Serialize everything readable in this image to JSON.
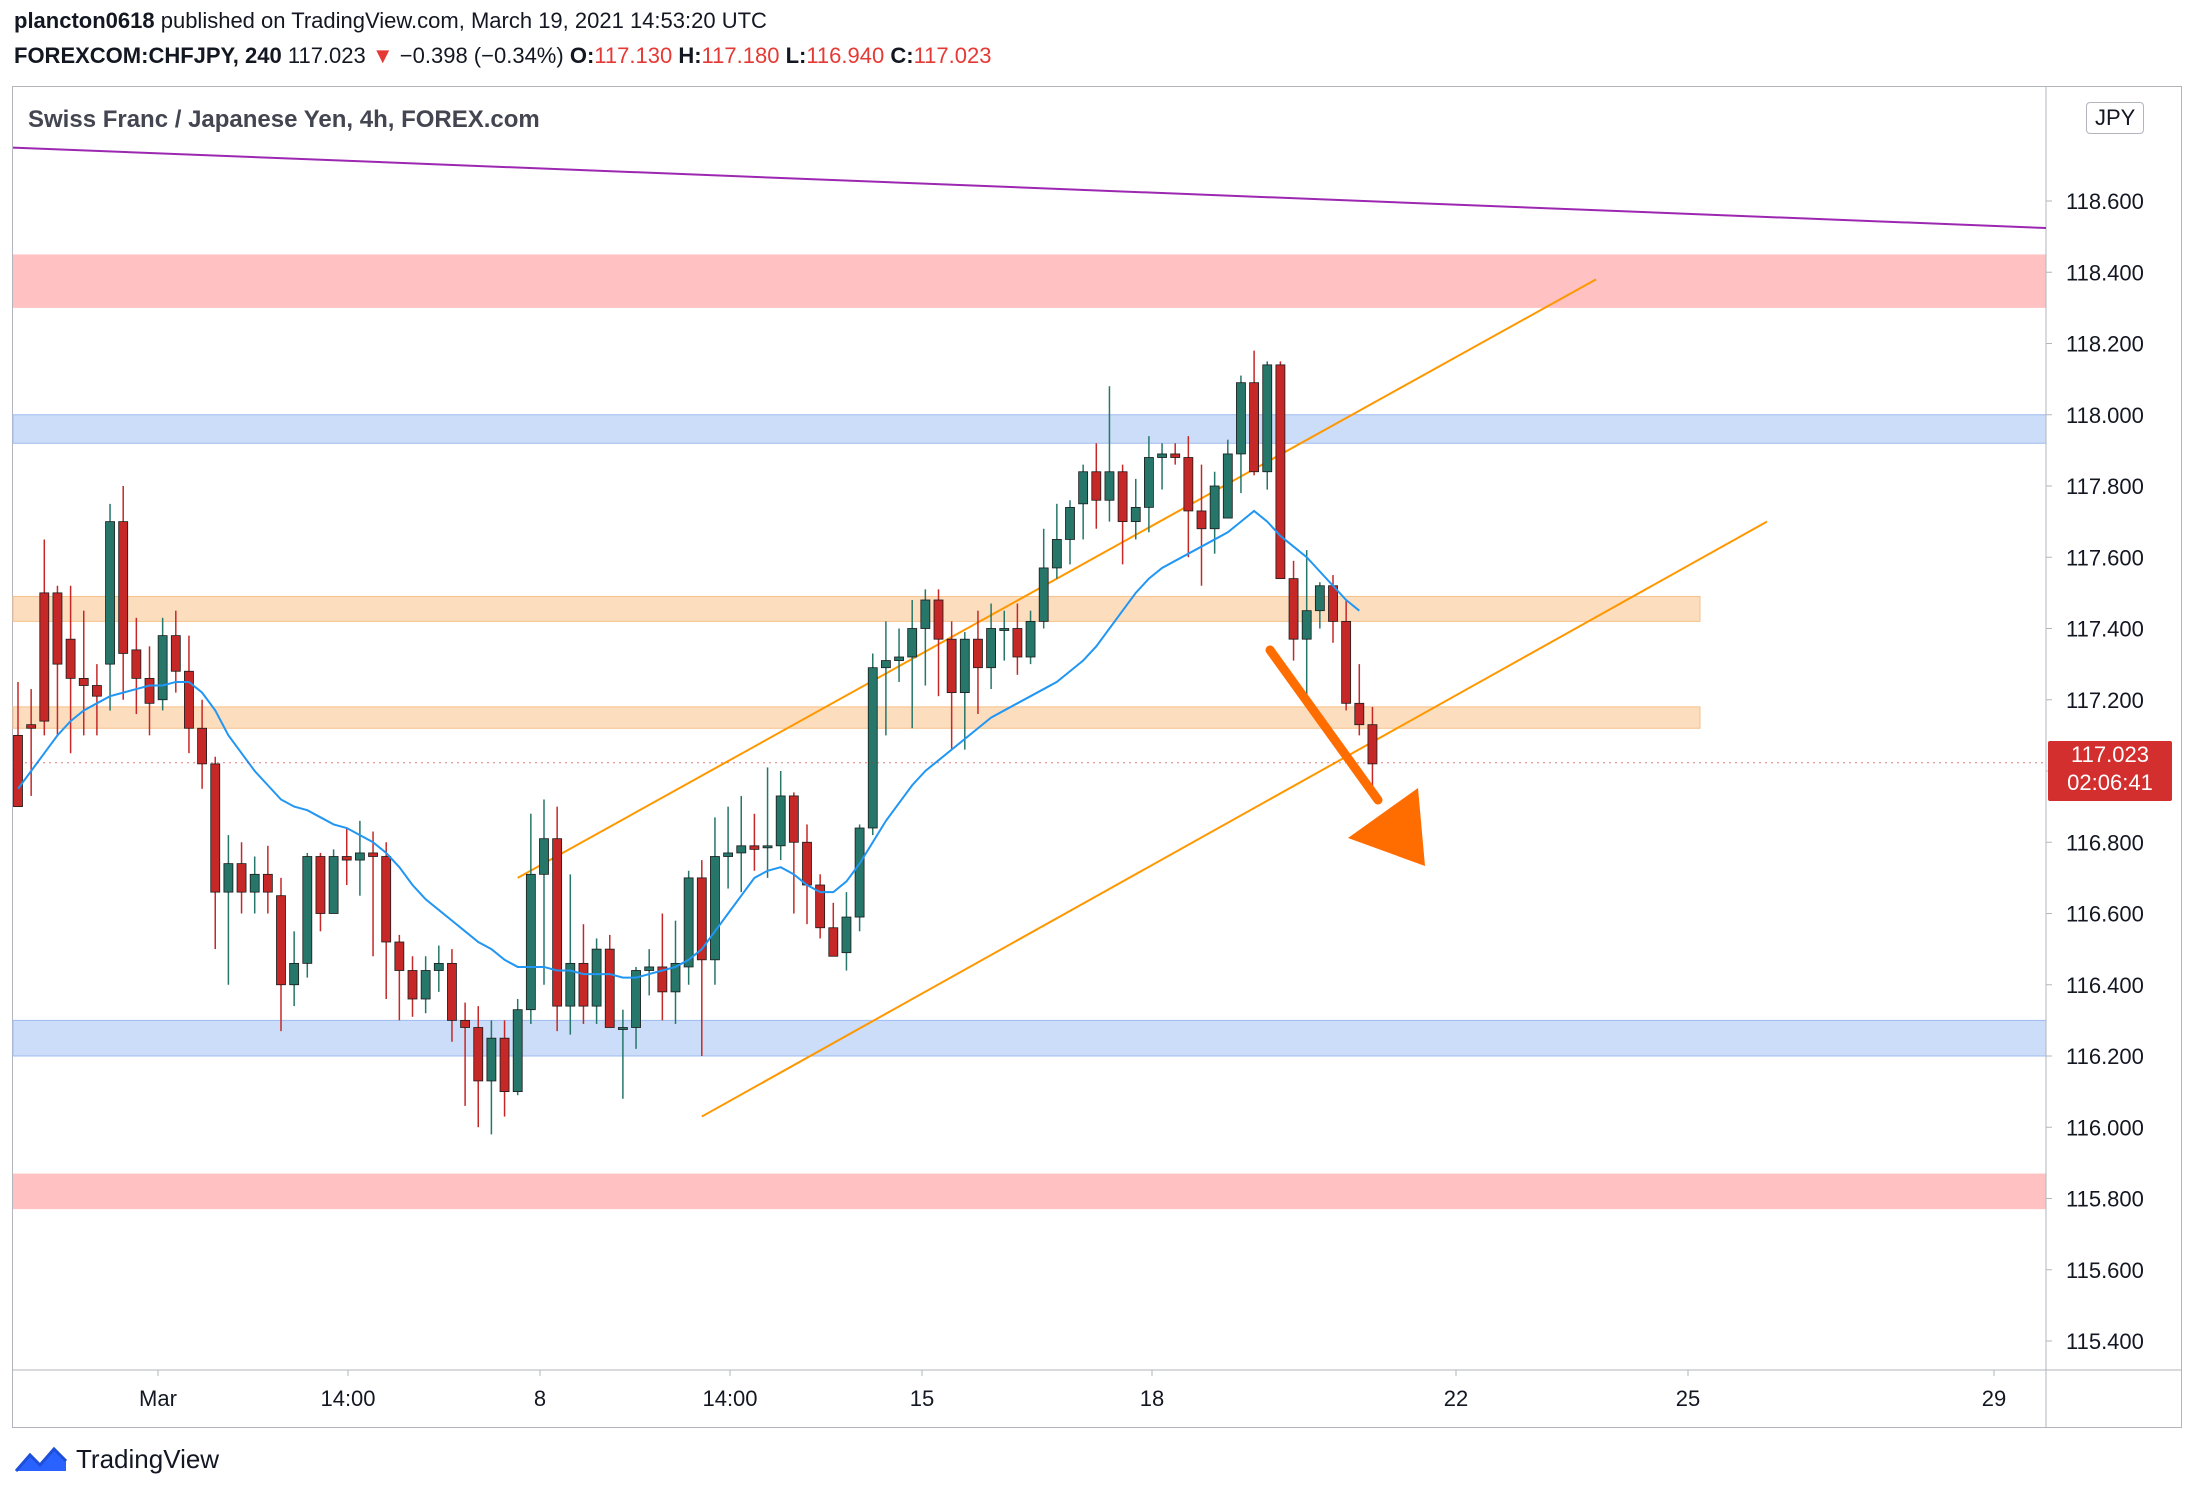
{
  "header": {
    "author": "plancton0618",
    "published": " published on TradingView.com, March 19, 2021 14:53:20 UTC",
    "symbol": "FOREXCOM:CHFJPY, 240",
    "price": "117.023",
    "change_arrow": "▼",
    "change": "−0.398 (−0.34%)",
    "o_label": "O:",
    "o_value": "117.130",
    "h_label": "H:",
    "h_value": "117.180",
    "l_label": "L:",
    "l_value": "116.940",
    "c_label": "C:",
    "c_value": "117.023"
  },
  "chart_title": "Swiss Franc / Japanese Yen, 4h, FOREX.com",
  "currency": "JPY",
  "last_price": {
    "value": "117.023",
    "countdown": "02:06:41",
    "color": "#d32f2f"
  },
  "footer": {
    "brand": "TradingView"
  },
  "colors": {
    "up": "#26766a",
    "down": "#c62828",
    "ma": "#2196f3",
    "channel": "#ff9800",
    "trendline": "#9c27b0",
    "red_zone": "#ffbaba",
    "blue_zone": "#c5d9f7",
    "orange_zone": "#fbd7b3",
    "arrow": "#ff6d00"
  },
  "chart_data": {
    "type": "candlestick",
    "symbol": "CHFJPY",
    "interval": "4h",
    "ylim": [
      115.3,
      119.0
    ],
    "yticks": [
      "118.600",
      "118.400",
      "118.200",
      "118.000",
      "117.800",
      "117.600",
      "117.400",
      "117.200",
      "117.000",
      "116.800",
      "116.600",
      "116.400",
      "116.200",
      "116.000",
      "115.800",
      "115.600",
      "115.400"
    ],
    "xticks": [
      "Mar",
      "14:00",
      "8",
      "14:00",
      "15",
      "18",
      "22",
      "25",
      "29"
    ],
    "zones": [
      {
        "type": "resistance",
        "color": "red",
        "from": 118.3,
        "to": 118.45
      },
      {
        "type": "resistance",
        "color": "blue",
        "from": 117.92,
        "to": 118.0
      },
      {
        "type": "level",
        "color": "orange",
        "from": 117.42,
        "to": 117.49
      },
      {
        "type": "level",
        "color": "orange",
        "from": 117.12,
        "to": 117.18
      },
      {
        "type": "support",
        "color": "blue",
        "from": 116.2,
        "to": 116.3
      },
      {
        "type": "support",
        "color": "red",
        "from": 115.77,
        "to": 115.87
      }
    ],
    "candles": [
      [
        117.1,
        116.9,
        117.25,
        116.9
      ],
      [
        117.13,
        117.12,
        117.23,
        116.93
      ],
      [
        117.5,
        117.14,
        117.65,
        117.1
      ],
      [
        117.5,
        117.3,
        117.52,
        117.1
      ],
      [
        117.37,
        117.26,
        117.52,
        117.05
      ],
      [
        117.26,
        117.24,
        117.45,
        117.1
      ],
      [
        117.24,
        117.21,
        117.3,
        117.1
      ],
      [
        117.3,
        117.7,
        117.75,
        117.17
      ],
      [
        117.7,
        117.33,
        117.8,
        117.2
      ],
      [
        117.34,
        117.26,
        117.43,
        117.16
      ],
      [
        117.26,
        117.19,
        117.35,
        117.1
      ],
      [
        117.2,
        117.38,
        117.43,
        117.17
      ],
      [
        117.38,
        117.28,
        117.45,
        117.22
      ],
      [
        117.28,
        117.12,
        117.38,
        117.05
      ],
      [
        117.12,
        117.02,
        117.2,
        116.95
      ],
      [
        117.02,
        116.66,
        117.04,
        116.5
      ],
      [
        116.66,
        116.74,
        116.82,
        116.4
      ],
      [
        116.74,
        116.66,
        116.8,
        116.6
      ],
      [
        116.66,
        116.71,
        116.76,
        116.6
      ],
      [
        116.71,
        116.66,
        116.79,
        116.6
      ],
      [
        116.65,
        116.4,
        116.7,
        116.27
      ],
      [
        116.4,
        116.46,
        116.55,
        116.34
      ],
      [
        116.46,
        116.76,
        116.77,
        116.42
      ],
      [
        116.76,
        116.6,
        116.77,
        116.55
      ],
      [
        116.6,
        116.76,
        116.78,
        116.6
      ],
      [
        116.76,
        116.75,
        116.84,
        116.68
      ],
      [
        116.75,
        116.77,
        116.86,
        116.65
      ],
      [
        116.77,
        116.76,
        116.83,
        116.48
      ],
      [
        116.76,
        116.52,
        116.8,
        116.36
      ],
      [
        116.52,
        116.44,
        116.54,
        116.3
      ],
      [
        116.44,
        116.36,
        116.48,
        116.31
      ],
      [
        116.36,
        116.44,
        116.48,
        116.32
      ],
      [
        116.44,
        116.46,
        116.51,
        116.38
      ],
      [
        116.46,
        116.3,
        116.5,
        116.24
      ],
      [
        116.3,
        116.28,
        116.35,
        116.06
      ],
      [
        116.28,
        116.13,
        116.34,
        116.0
      ],
      [
        116.13,
        116.25,
        116.3,
        115.98
      ],
      [
        116.25,
        116.1,
        116.3,
        116.03
      ],
      [
        116.1,
        116.33,
        116.36,
        116.09
      ],
      [
        116.33,
        116.71,
        116.88,
        116.29
      ],
      [
        116.71,
        116.81,
        116.92,
        116.4
      ],
      [
        116.81,
        116.34,
        116.9,
        116.27
      ],
      [
        116.34,
        116.46,
        116.71,
        116.26
      ],
      [
        116.46,
        116.34,
        116.57,
        116.29
      ],
      [
        116.34,
        116.5,
        116.53,
        116.29
      ],
      [
        116.5,
        116.28,
        116.54,
        116.28
      ],
      [
        116.28,
        116.28,
        116.33,
        116.08
      ],
      [
        116.28,
        116.44,
        116.45,
        116.22
      ],
      [
        116.44,
        116.45,
        116.5,
        116.37
      ],
      [
        116.45,
        116.38,
        116.6,
        116.3
      ],
      [
        116.38,
        116.46,
        116.58,
        116.29
      ],
      [
        116.45,
        116.7,
        116.72,
        116.4
      ],
      [
        116.7,
        116.47,
        116.75,
        116.2
      ],
      [
        116.47,
        116.76,
        116.87,
        116.4
      ],
      [
        116.76,
        116.77,
        116.9,
        116.67
      ],
      [
        116.77,
        116.79,
        116.93,
        116.66
      ],
      [
        116.79,
        116.78,
        116.88,
        116.72
      ],
      [
        116.79,
        116.79,
        117.01,
        116.7
      ],
      [
        116.79,
        116.93,
        117.0,
        116.75
      ],
      [
        116.93,
        116.8,
        116.94,
        116.6
      ],
      [
        116.8,
        116.68,
        116.85,
        116.57
      ],
      [
        116.68,
        116.56,
        116.71,
        116.53
      ],
      [
        116.56,
        116.48,
        116.63,
        116.5
      ],
      [
        116.49,
        116.59,
        116.66,
        116.44
      ],
      [
        116.59,
        116.84,
        116.85,
        116.55
      ],
      [
        116.84,
        117.29,
        117.33,
        116.82
      ],
      [
        117.29,
        117.31,
        117.42,
        117.1
      ],
      [
        117.31,
        117.32,
        117.4,
        117.25
      ],
      [
        117.32,
        117.4,
        117.48,
        117.12
      ],
      [
        117.4,
        117.48,
        117.51,
        117.24
      ],
      [
        117.48,
        117.37,
        117.51,
        117.21
      ],
      [
        117.37,
        117.22,
        117.42,
        117.06
      ],
      [
        117.22,
        117.37,
        117.39,
        117.06
      ],
      [
        117.37,
        117.29,
        117.45,
        117.16
      ],
      [
        117.29,
        117.4,
        117.47,
        117.23
      ],
      [
        117.4,
        117.4,
        117.45,
        117.31
      ],
      [
        117.4,
        117.32,
        117.47,
        117.27
      ],
      [
        117.32,
        117.42,
        117.45,
        117.3
      ],
      [
        117.42,
        117.57,
        117.68,
        117.4
      ],
      [
        117.57,
        117.65,
        117.75,
        117.54
      ],
      [
        117.65,
        117.74,
        117.76,
        117.58
      ],
      [
        117.75,
        117.84,
        117.86,
        117.65
      ],
      [
        117.84,
        117.76,
        117.92,
        117.68
      ],
      [
        117.76,
        117.84,
        118.08,
        117.7
      ],
      [
        117.84,
        117.7,
        117.86,
        117.58
      ],
      [
        117.7,
        117.74,
        117.82,
        117.65
      ],
      [
        117.74,
        117.88,
        117.94,
        117.67
      ],
      [
        117.88,
        117.89,
        117.92,
        117.79
      ],
      [
        117.89,
        117.88,
        117.92,
        117.86
      ],
      [
        117.88,
        117.73,
        117.94,
        117.6
      ],
      [
        117.73,
        117.68,
        117.86,
        117.52
      ],
      [
        117.68,
        117.8,
        117.84,
        117.61
      ],
      [
        117.71,
        117.89,
        117.93,
        117.72
      ],
      [
        117.89,
        118.09,
        118.11,
        117.78
      ],
      [
        118.09,
        117.84,
        118.18,
        117.83
      ],
      [
        117.84,
        118.14,
        118.15,
        117.79
      ],
      [
        118.14,
        117.54,
        118.15,
        117.55
      ],
      [
        117.54,
        117.37,
        117.59,
        117.31
      ],
      [
        117.37,
        117.45,
        117.62,
        117.21
      ],
      [
        117.45,
        117.52,
        117.53,
        117.4
      ],
      [
        117.52,
        117.42,
        117.55,
        117.36
      ],
      [
        117.42,
        117.19,
        117.48,
        117.17
      ],
      [
        117.19,
        117.13,
        117.3,
        117.1
      ],
      [
        117.13,
        117.02,
        117.18,
        116.94
      ]
    ],
    "ma20": [
      116.95,
      117.0,
      117.05,
      117.1,
      117.14,
      117.17,
      117.19,
      117.21,
      117.22,
      117.23,
      117.24,
      117.24,
      117.25,
      117.25,
      117.22,
      117.17,
      117.1,
      117.05,
      117.0,
      116.96,
      116.92,
      116.9,
      116.89,
      116.87,
      116.85,
      116.84,
      116.82,
      116.8,
      116.77,
      116.73,
      116.68,
      116.64,
      116.61,
      116.58,
      116.55,
      116.52,
      116.5,
      116.47,
      116.45,
      116.45,
      116.45,
      116.44,
      116.44,
      116.43,
      116.43,
      116.43,
      116.42,
      116.42,
      116.43,
      116.44,
      116.45,
      116.47,
      116.5,
      116.55,
      116.6,
      116.65,
      116.7,
      116.72,
      116.73,
      116.71,
      116.68,
      116.66,
      116.66,
      116.69,
      116.74,
      116.8,
      116.86,
      116.91,
      116.96,
      117.0,
      117.03,
      117.06,
      117.09,
      117.12,
      117.15,
      117.17,
      117.19,
      117.21,
      117.23,
      117.25,
      117.28,
      117.31,
      117.35,
      117.4,
      117.45,
      117.5,
      117.54,
      117.57,
      117.59,
      117.61,
      117.63,
      117.65,
      117.67,
      117.7,
      117.73,
      117.7,
      117.66,
      117.63,
      117.6,
      117.56,
      117.52,
      117.48,
      117.45
    ],
    "channel": {
      "upper": {
        "from": {
          "bar": 38,
          "price": 116.7
        },
        "to": {
          "bar": 120,
          "price": 118.38
        }
      },
      "lower": {
        "from": {
          "bar": 52,
          "price": 116.03
        },
        "to": {
          "bar": 133,
          "price": 117.7
        }
      }
    },
    "trendline": {
      "from": {
        "bar": 0,
        "price": 118.75
      },
      "to": {
        "bar": 205,
        "price": 118.45
      }
    },
    "last": 117.023
  }
}
